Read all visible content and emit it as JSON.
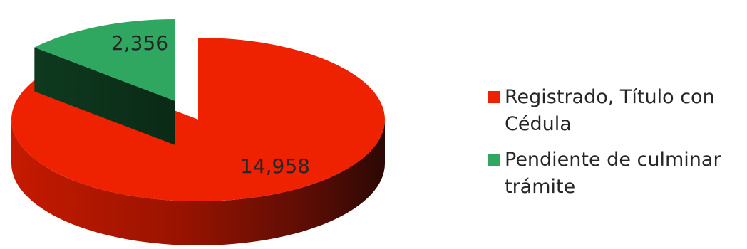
{
  "chart_data": {
    "type": "pie",
    "style": "3d-exploded",
    "slices": [
      {
        "label": "Registrado, Título con Cédula",
        "value": 14958,
        "display": "14,958",
        "color": "#ee2200"
      },
      {
        "label": "Pendiente de culminar trámite",
        "value": 2356,
        "display": "2,356",
        "color": "#2fa760"
      }
    ],
    "title": "",
    "legend_position": "right"
  }
}
